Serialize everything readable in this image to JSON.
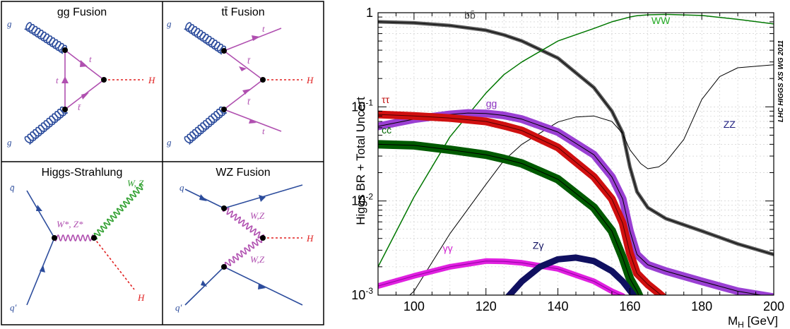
{
  "diagrams": {
    "gg_fusion": {
      "title": "gg Fusion",
      "labels": {
        "g_top": "g",
        "g_bottom": "g",
        "t_upper": "t",
        "t_left": "t",
        "tbar": "t̄",
        "H": "H"
      }
    },
    "tt_fusion": {
      "title": "tt̄ Fusion",
      "labels": {
        "g_top": "g",
        "g_bottom": "g",
        "t_top": "t",
        "tbar_upper": "t̄",
        "tbar_lower": "t̄",
        "t_bottom": "t",
        "H": "H"
      }
    },
    "higgs_strahlung": {
      "title": "Higgs-Strahlung",
      "labels": {
        "qbar": "q̄",
        "qprime": "q′",
        "wz_star": "W*, Z*",
        "wz": "W, Z",
        "H": "H"
      }
    },
    "wz_fusion": {
      "title": "WZ Fusion",
      "labels": {
        "q_top": "q",
        "q_bottom": "q′",
        "wz_upper": "W,Z",
        "wz_lower": "W,Z",
        "H": "H"
      }
    }
  },
  "chart_data": {
    "type": "line",
    "xlabel": "M_H [GeV]",
    "ylabel": "Higgs BR + Total Uncert",
    "watermark": "LHC HIGGS XS WG 2011",
    "xlim": [
      90,
      200
    ],
    "ylim": [
      0.001,
      1
    ],
    "yscale": "log",
    "x_ticks": [
      100,
      120,
      140,
      160,
      180,
      200
    ],
    "y_ticks": [
      {
        "value": 1,
        "base": "1",
        "exp": ""
      },
      {
        "value": 0.1,
        "base": "10",
        "exp": "-1"
      },
      {
        "value": 0.01,
        "base": "10",
        "exp": "-2"
      },
      {
        "value": 0.001,
        "base": "10",
        "exp": "-3"
      }
    ],
    "series": [
      {
        "name": "bb̄",
        "color": "#555555",
        "core": "#000000",
        "band": 5,
        "x": [
          90,
          100,
          110,
          120,
          125,
          130,
          140,
          150,
          155,
          158,
          160,
          162,
          165,
          170,
          180,
          190,
          200
        ],
        "y": [
          0.8,
          0.78,
          0.73,
          0.65,
          0.58,
          0.5,
          0.33,
          0.16,
          0.09,
          0.053,
          0.023,
          0.0125,
          0.0085,
          0.0065,
          0.0048,
          0.0035,
          0.0027
        ]
      },
      {
        "name": "WW",
        "color": "#007700",
        "core": "#007700",
        "band": 1.5,
        "x": [
          90,
          100,
          110,
          120,
          125,
          130,
          140,
          150,
          155,
          160,
          162,
          165,
          170,
          180,
          190,
          200
        ],
        "y": [
          0.002,
          0.011,
          0.048,
          0.14,
          0.22,
          0.3,
          0.5,
          0.68,
          0.8,
          0.9,
          0.93,
          0.95,
          0.96,
          0.935,
          0.85,
          0.76
        ]
      },
      {
        "name": "ZZ",
        "color": "#000000",
        "core": "#000000",
        "band": 1,
        "x": [
          90,
          100,
          110,
          120,
          125,
          130,
          140,
          145,
          150,
          155,
          158,
          160,
          163,
          165,
          168,
          170,
          175,
          180,
          185,
          190,
          200
        ],
        "y": [
          0.0005,
          0.0011,
          0.0045,
          0.015,
          0.027,
          0.04,
          0.069,
          0.078,
          0.08,
          0.07,
          0.052,
          0.035,
          0.025,
          0.022,
          0.023,
          0.026,
          0.045,
          0.12,
          0.21,
          0.26,
          0.28
        ]
      },
      {
        "name": "gg",
        "color": "#9A3FD3",
        "core": "#000000",
        "band": 11,
        "x": [
          90,
          100,
          110,
          115,
          120,
          125,
          130,
          140,
          150,
          155,
          158,
          160,
          162,
          165,
          170,
          180,
          190,
          200
        ],
        "y": [
          0.062,
          0.074,
          0.083,
          0.086,
          0.085,
          0.081,
          0.074,
          0.054,
          0.031,
          0.018,
          0.0105,
          0.0048,
          0.0027,
          0.0021,
          0.0018,
          0.0014,
          0.0011,
          0.00095
        ]
      },
      {
        "name": "ττ",
        "color": "#D01010",
        "core": "#550000",
        "band": 11,
        "x": [
          90,
          100,
          110,
          120,
          125,
          130,
          140,
          150,
          155,
          158,
          160,
          162,
          165,
          168,
          170
        ],
        "y": [
          0.083,
          0.08,
          0.076,
          0.07,
          0.063,
          0.056,
          0.037,
          0.018,
          0.0105,
          0.0058,
          0.0028,
          0.0017,
          0.0013,
          0.00105,
          0.0009
        ]
      },
      {
        "name": "cc̄",
        "color": "#005A00",
        "core": "#000000",
        "band": 12,
        "x": [
          90,
          100,
          110,
          120,
          125,
          130,
          140,
          150,
          155,
          158,
          160,
          162,
          163
        ],
        "y": [
          0.04,
          0.039,
          0.035,
          0.031,
          0.028,
          0.025,
          0.017,
          0.0085,
          0.0048,
          0.0025,
          0.0015,
          0.0011,
          0.0009
        ]
      },
      {
        "name": "γγ",
        "color": "#E020E0",
        "core": "#9000A0",
        "band": 8,
        "x": [
          90,
          100,
          110,
          120,
          125,
          130,
          140,
          150,
          155,
          158
        ],
        "y": [
          0.00125,
          0.0016,
          0.002,
          0.0023,
          0.00228,
          0.0022,
          0.0019,
          0.0014,
          0.0011,
          0.00098
        ]
      },
      {
        "name": "Zγ",
        "color": "#101060",
        "core": "#101060",
        "band": 9,
        "x": [
          126,
          130,
          135,
          140,
          145,
          150,
          155,
          158,
          161
        ],
        "y": [
          0.00095,
          0.0014,
          0.002,
          0.0024,
          0.0025,
          0.0023,
          0.0018,
          0.0014,
          0.001
        ]
      }
    ],
    "series_label_style": [
      {
        "name": "bb̄",
        "x": 114,
        "y": 0.86,
        "color": "#444444"
      },
      {
        "name": "WW",
        "x": 166,
        "y": 0.76,
        "color": "#22AA22"
      },
      {
        "name": "ZZ",
        "x": 186,
        "y": 0.06,
        "color": "#202080"
      },
      {
        "name": "gg",
        "x": 120,
        "y": 0.1,
        "color": "#8A30C0"
      },
      {
        "name": "ττ",
        "x": 91,
        "y": 0.11,
        "color": "#C01010"
      },
      {
        "name": "cc̄",
        "x": 91,
        "y": 0.052,
        "color": "#006600"
      },
      {
        "name": "γγ",
        "x": 108,
        "y": 0.0029,
        "color": "#D020D0"
      },
      {
        "name": "Zγ",
        "x": 133,
        "y": 0.0031,
        "color": "#101060"
      }
    ]
  }
}
